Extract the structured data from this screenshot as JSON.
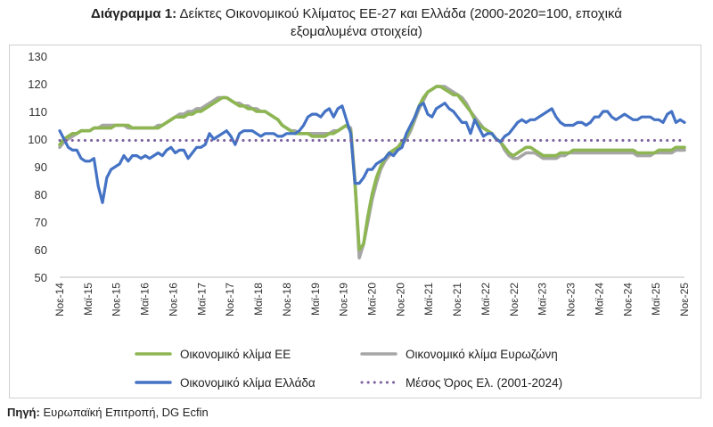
{
  "caption": {
    "label": "Διάγραμμα 1:",
    "title_line1": "Δείκτες Οικονομικού Κλίματος ΕΕ-27 και Ελλάδα (2000-2020=100, εποχικά",
    "title_line2": "εξομαλυμένα στοιχεία)"
  },
  "source": {
    "label": "Πηγή:",
    "text": "Ευρωπαϊκή Επιτροπή, DG Ecfin"
  },
  "colors": {
    "eu": "#8db653",
    "euro": "#a6a6a6",
    "greece": "#4472c4",
    "avg": "#7b5f9e"
  },
  "chart_data": {
    "type": "line",
    "title": "Δείκτες Οικονομικού Κλίματος ΕΕ-27 και Ελλάδα (2000-2020=100, εποχικά εξομαλυμένα στοιχεία)",
    "xlabel": "",
    "ylabel": "",
    "ylim": [
      50,
      130
    ],
    "yticks": [
      50,
      60,
      70,
      80,
      90,
      100,
      110,
      120,
      130
    ],
    "grid": false,
    "legend_position": "bottom",
    "xlabels": [
      "Νοε-14",
      "Μαϊ-15",
      "Νοε-15",
      "Μαϊ-16",
      "Νοε-16",
      "Μαϊ-17",
      "Νοε-17",
      "Μαϊ-18",
      "Νοε-18",
      "Μαϊ-19",
      "Νοε-19",
      "Μαϊ-20",
      "Νοε-20",
      "Μαϊ-21",
      "Νοε-21",
      "Μαϊ-22",
      "Νοε-22",
      "Μαϊ-23",
      "Νοε-23",
      "Μαϊ-24",
      "Νοε-24",
      "Μαϊ-25",
      "Νοε-25"
    ],
    "series": [
      {
        "name": "Οικονομικό κλίμα ΕΕ",
        "key": "eu",
        "style": "solid",
        "values": [
          98,
          100,
          101,
          102,
          102,
          103,
          103,
          103,
          104,
          104,
          104,
          104,
          104,
          105,
          105,
          105,
          105,
          104,
          104,
          104,
          104,
          104,
          104,
          104,
          105,
          106,
          107,
          108,
          108,
          108,
          109,
          109,
          110,
          110,
          111,
          112,
          113,
          114,
          115,
          115,
          114,
          113,
          112,
          112,
          111,
          111,
          110,
          110,
          110,
          109,
          108,
          107,
          105,
          104,
          103,
          102,
          102,
          102,
          102,
          101,
          101,
          101,
          101,
          102,
          102,
          103,
          104,
          105,
          103,
          84,
          60,
          62,
          72,
          80,
          86,
          90,
          93,
          95,
          96,
          97,
          99,
          101,
          104,
          108,
          112,
          115,
          117,
          118,
          119,
          119,
          118,
          117,
          116,
          116,
          114,
          112,
          110,
          107,
          105,
          104,
          103,
          102,
          100,
          99,
          97,
          95,
          94,
          95,
          96,
          97,
          97,
          96,
          95,
          94,
          94,
          94,
          94,
          95,
          95,
          95,
          96,
          96,
          96,
          96,
          96,
          96,
          96,
          96,
          96,
          96,
          96,
          96,
          96,
          96,
          96,
          95,
          95,
          95,
          95,
          95,
          96,
          96,
          96,
          96,
          97,
          97,
          97
        ]
      },
      {
        "name": "Οικονομικό κλίμα Ευρωζώνη",
        "key": "euro",
        "style": "solid",
        "values": [
          97,
          99,
          100,
          101,
          102,
          103,
          103,
          103,
          104,
          104,
          105,
          105,
          105,
          105,
          105,
          105,
          104,
          104,
          104,
          104,
          104,
          104,
          104,
          105,
          105,
          106,
          107,
          108,
          109,
          109,
          110,
          110,
          111,
          111,
          112,
          113,
          114,
          115,
          115,
          115,
          114,
          113,
          113,
          112,
          112,
          111,
          111,
          110,
          110,
          109,
          108,
          107,
          105,
          104,
          103,
          103,
          102,
          102,
          102,
          102,
          102,
          102,
          102,
          102,
          103,
          103,
          104,
          105,
          104,
          85,
          57,
          62,
          70,
          78,
          84,
          89,
          92,
          94,
          95,
          96,
          98,
          100,
          103,
          107,
          111,
          114,
          117,
          118,
          119,
          119,
          119,
          118,
          117,
          116,
          115,
          113,
          110,
          108,
          106,
          104,
          103,
          102,
          100,
          99,
          96,
          94,
          93,
          93,
          94,
          95,
          95,
          95,
          94,
          93,
          93,
          93,
          93,
          94,
          94,
          95,
          95,
          95,
          95,
          95,
          95,
          95,
          95,
          95,
          95,
          95,
          95,
          95,
          95,
          95,
          95,
          94,
          94,
          94,
          94,
          95,
          95,
          95,
          95,
          95,
          96,
          96,
          96
        ]
      },
      {
        "name": "Οικονομικό κλίμα Ελλάδα",
        "key": "greece",
        "style": "solid",
        "values": [
          103,
          100,
          97,
          96,
          96,
          93,
          92,
          92,
          93,
          83,
          77,
          86,
          89,
          90,
          91,
          94,
          92,
          94,
          94,
          93,
          94,
          93,
          94,
          95,
          94,
          96,
          97,
          95,
          96,
          96,
          93,
          95,
          97,
          97,
          98,
          102,
          100,
          101,
          102,
          103,
          101,
          98,
          102,
          103,
          103,
          103,
          102,
          101,
          102,
          102,
          102,
          101,
          101,
          102,
          102,
          102,
          103,
          105,
          108,
          109,
          109,
          108,
          110,
          111,
          108,
          111,
          112,
          107,
          102,
          84,
          84,
          86,
          89,
          89,
          91,
          92,
          93,
          95,
          94,
          96,
          97,
          102,
          105,
          108,
          112,
          113,
          109,
          108,
          111,
          112,
          113,
          111,
          110,
          108,
          106,
          106,
          102,
          107,
          104,
          101,
          102,
          102,
          100,
          99,
          101,
          102,
          104,
          106,
          107,
          106,
          107,
          107,
          108,
          109,
          110,
          111,
          108,
          106,
          105,
          105,
          105,
          106,
          106,
          105,
          106,
          108,
          108,
          110,
          110,
          108,
          107,
          108,
          109,
          108,
          107,
          107,
          108,
          108,
          108,
          107,
          107,
          106,
          109,
          110,
          106,
          107,
          106
        ]
      },
      {
        "name": "Μέσος Όρος Ελ. (2001-2024)",
        "key": "avg",
        "style": "dotted",
        "constant": 99.5
      }
    ]
  },
  "legend": [
    {
      "label": "Οικονομικό κλίμα ΕΕ",
      "key": "eu",
      "style": "solid"
    },
    {
      "label": "Οικονομικό κλίμα Ευρωζώνη",
      "key": "euro",
      "style": "solid"
    },
    {
      "label": "Οικονομικό κλίμα Ελλάδα",
      "key": "greece",
      "style": "solid"
    },
    {
      "label": "Μέσος Όρος Ελ. (2001-2024)",
      "key": "avg",
      "style": "dotted"
    }
  ]
}
